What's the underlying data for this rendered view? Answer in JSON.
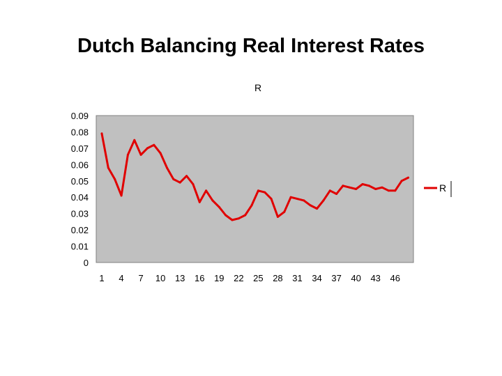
{
  "slide": {
    "title": "Dutch Balancing Real Interest Rates"
  },
  "colors": {
    "plot_background": "#c0c0c0",
    "series_line": "#e00000",
    "axis": "#808080"
  },
  "chart_data": {
    "type": "line",
    "title": "R",
    "xlabel": "",
    "ylabel": "",
    "x": [
      1,
      2,
      3,
      4,
      5,
      6,
      7,
      8,
      9,
      10,
      11,
      12,
      13,
      14,
      15,
      16,
      17,
      18,
      19,
      20,
      21,
      22,
      23,
      24,
      25,
      26,
      27,
      28,
      29,
      30,
      31,
      32,
      33,
      34,
      35,
      36,
      37,
      38,
      39,
      40,
      41,
      42,
      43,
      44,
      45,
      46,
      47,
      48
    ],
    "x_tick_labels": [
      "1",
      "4",
      "7",
      "10",
      "13",
      "16",
      "19",
      "22",
      "25",
      "28",
      "31",
      "34",
      "37",
      "40",
      "43",
      "46"
    ],
    "y_tick_labels": [
      "0",
      "0.01",
      "0.02",
      "0.03",
      "0.04",
      "0.05",
      "0.06",
      "0.07",
      "0.08",
      "0.09"
    ],
    "ylim": [
      0,
      0.09
    ],
    "grid": false,
    "legend_position": "right",
    "series": [
      {
        "name": "R",
        "values": [
          0.079,
          0.058,
          0.051,
          0.041,
          0.066,
          0.075,
          0.066,
          0.07,
          0.072,
          0.067,
          0.058,
          0.051,
          0.049,
          0.053,
          0.048,
          0.037,
          0.044,
          0.038,
          0.034,
          0.029,
          0.026,
          0.027,
          0.029,
          0.035,
          0.044,
          0.043,
          0.039,
          0.028,
          0.031,
          0.04,
          0.039,
          0.038,
          0.035,
          0.033,
          0.038,
          0.044,
          0.042,
          0.047,
          0.046,
          0.045,
          0.048,
          0.047,
          0.045,
          0.046,
          0.044,
          0.044,
          0.05,
          0.052
        ]
      }
    ]
  }
}
